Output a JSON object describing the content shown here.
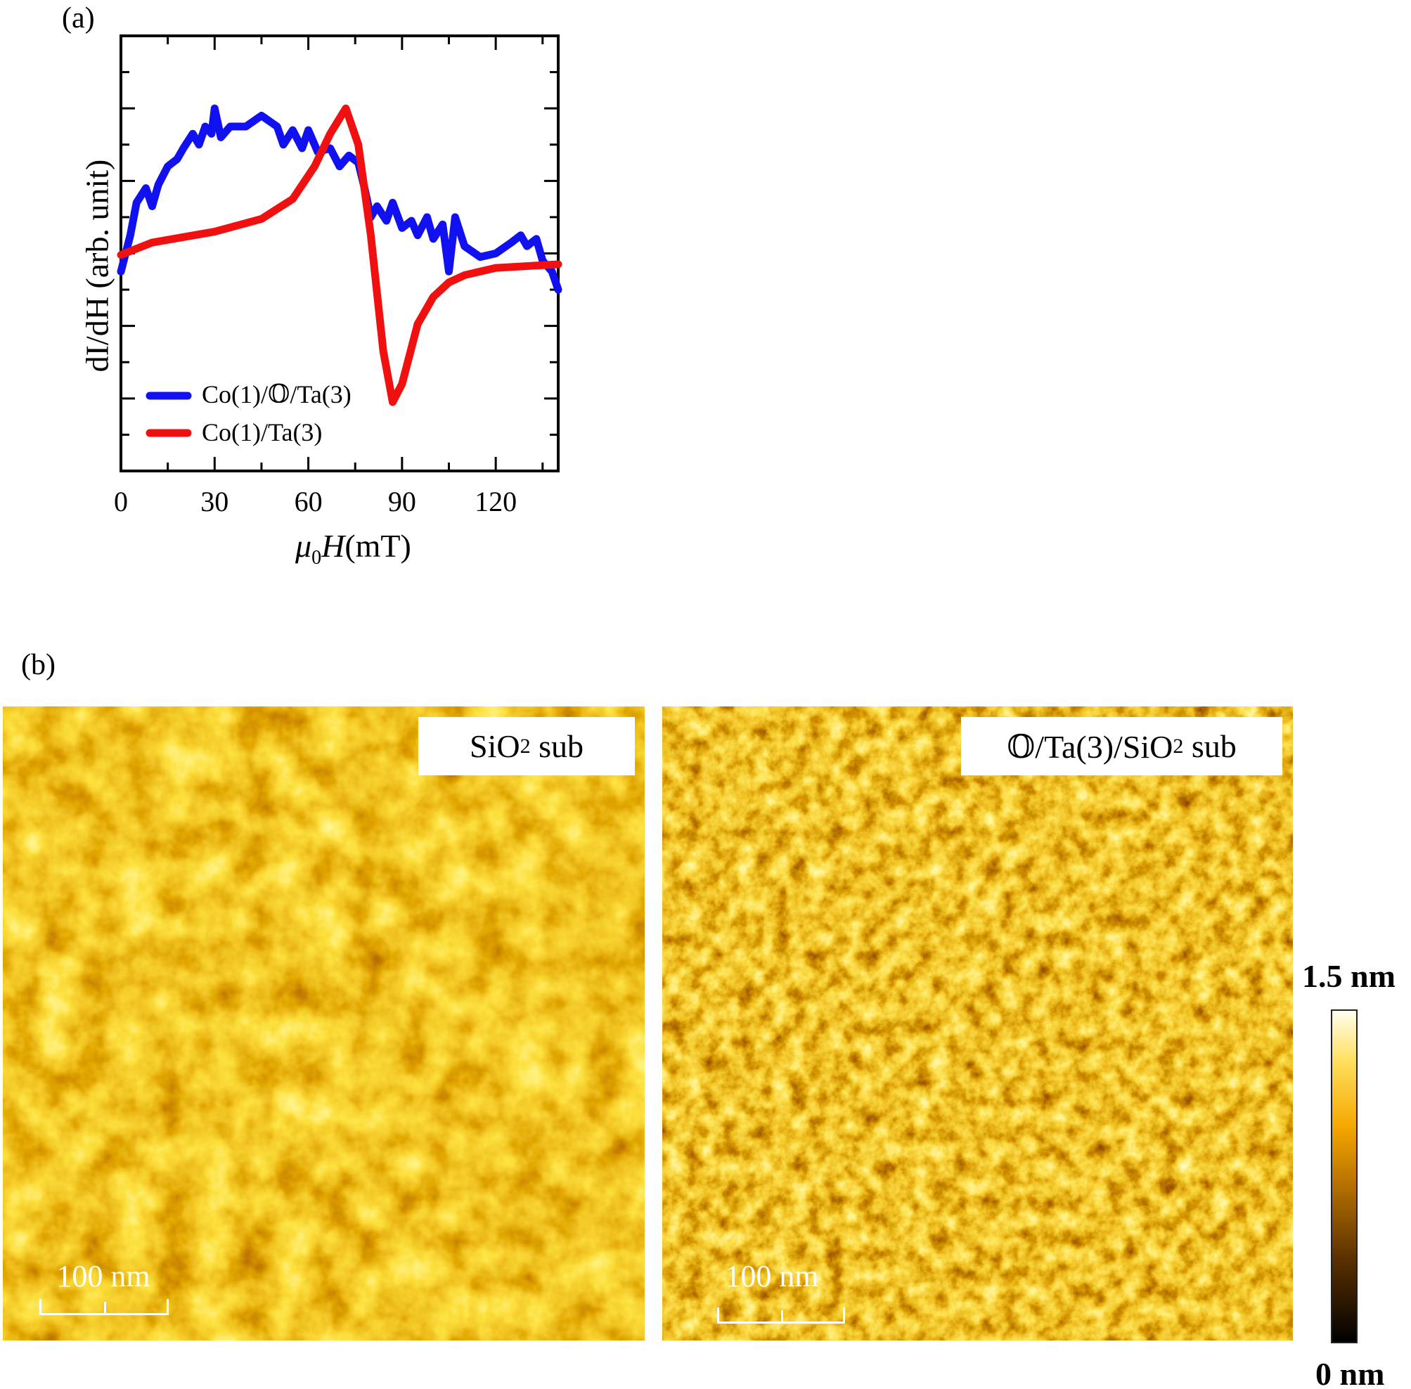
{
  "panel_a_label": "(a)",
  "panel_b_label": "(b)",
  "chart_data": {
    "type": "line",
    "xlabel": "μ0H (mT)",
    "xlabel_parts": {
      "mu": "μ",
      "sub": "0",
      "var": "H",
      "unit": "(mT)"
    },
    "ylabel": "dI/dH (arb. unit)",
    "xlim": [
      0,
      140
    ],
    "ylim": [
      0,
      12
    ],
    "xticks": [
      0,
      30,
      60,
      90,
      120
    ],
    "xtick_labels": [
      "0",
      "30",
      "60",
      "90",
      "120"
    ],
    "y_tick_labels_shown": false,
    "grid": false,
    "legend_position": "bottom-left",
    "series": [
      {
        "name": "Co(1)/𝕆/Ta(3)",
        "color": "#1010f0",
        "x": [
          0,
          3,
          5,
          8,
          10,
          12,
          15,
          18,
          20,
          23,
          25,
          27,
          29,
          30,
          32,
          35,
          40,
          45,
          50,
          52,
          55,
          58,
          60,
          63,
          67,
          70,
          73,
          76,
          78,
          80,
          82,
          85,
          87,
          90,
          93,
          95,
          98,
          100,
          103,
          105,
          107,
          110,
          115,
          120,
          125,
          128,
          130,
          133,
          135,
          138,
          140
        ],
        "y": [
          5.5,
          6.5,
          7.4,
          7.8,
          7.3,
          7.9,
          8.4,
          8.6,
          8.9,
          9.3,
          9.0,
          9.5,
          9.3,
          10.0,
          9.2,
          9.5,
          9.5,
          9.8,
          9.5,
          9.0,
          9.4,
          8.9,
          9.4,
          8.8,
          8.9,
          8.4,
          8.7,
          8.5,
          7.8,
          7.0,
          7.3,
          6.9,
          7.4,
          6.7,
          6.9,
          6.5,
          7.0,
          6.4,
          6.8,
          5.5,
          7.0,
          6.2,
          5.9,
          6.0,
          6.3,
          6.5,
          6.2,
          6.4,
          5.8,
          5.5,
          5.0
        ]
      },
      {
        "name": "Co(1)/Ta(3)",
        "color": "#f01010",
        "x": [
          0,
          10,
          30,
          45,
          55,
          62,
          67,
          72,
          76,
          80,
          84,
          87,
          90,
          95,
          100,
          105,
          110,
          120,
          130,
          140
        ],
        "y": [
          5.96,
          6.3,
          6.6,
          6.95,
          7.5,
          8.4,
          9.3,
          10.0,
          9.0,
          6.5,
          3.3,
          1.9,
          2.4,
          4.05,
          4.8,
          5.2,
          5.4,
          5.6,
          5.65,
          5.7
        ]
      }
    ]
  },
  "afm": {
    "left": {
      "label_main": "SiO",
      "label_sub": "2",
      "label_rest": " sub",
      "scale_bar": "100 nm"
    },
    "right": {
      "label_main": "𝕆/Ta(3)/SiO",
      "label_sub": "2",
      "label_rest": " sub",
      "scale_bar": "100 nm"
    },
    "colorbar": {
      "max_label": "1.5 nm",
      "min_label": "0 nm",
      "colors": [
        "#000000",
        "#5a3000",
        "#c07800",
        "#f5a800",
        "#ffe060",
        "#fffff0"
      ]
    }
  }
}
